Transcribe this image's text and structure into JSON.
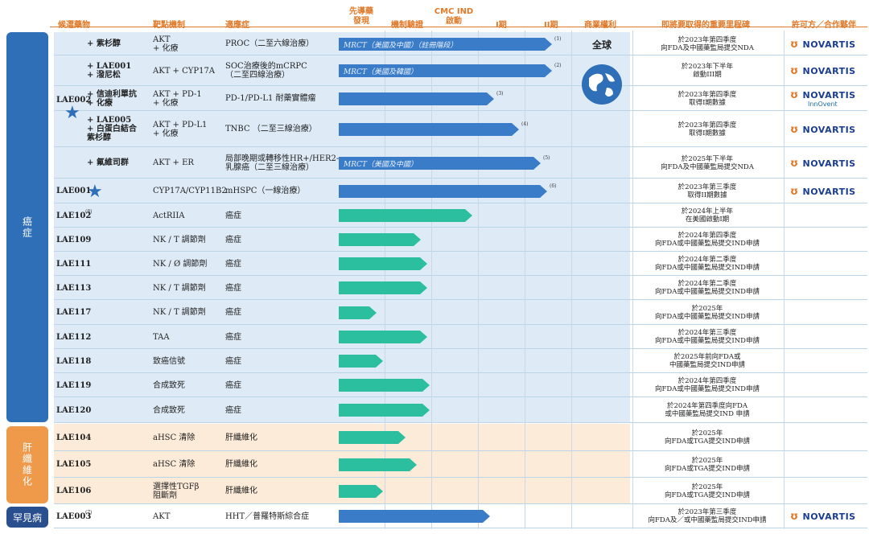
{
  "headers": {
    "candidate": "候選藥物",
    "mechanism": "靶點機制",
    "indication": "適應症",
    "discovery": "先導藥\n發現",
    "validation": "機制驗證",
    "cmc": "CMC IND\n啟動",
    "phase1": "I期",
    "phase2": "II期",
    "rights": "商業權利",
    "milestone": "即將要取得的重要里程碑",
    "partner": "許可方／合作夥伴"
  },
  "categories": [
    {
      "label": "癌症",
      "color": "#2f6fb8"
    },
    {
      "label": "肝纖維化",
      "color": "#ef9a4a"
    },
    {
      "label": "罕見病",
      "color": "#2a4f8f"
    }
  ],
  "group_lae002": {
    "name": "LAE002"
  },
  "rights_text": "全球",
  "rows": [
    {
      "drug": "+ 紫杉醇",
      "mech": "AKT\n+ 化療",
      "ind": "PROC（二至六線治療）",
      "stage": 0.96,
      "bartext": "MRCT（美國及中國）（註冊階段）",
      "note": "(1)",
      "ms": "於2023年第四季度\n向FDA及中國藥監局提交NDA",
      "partner": "NOVARTIS",
      "color": "blue"
    },
    {
      "drug": "+ LAE001\n+ 潑尼松",
      "mech": "AKT + CYP17A",
      "ind": "SOC治療後的mCRPC\n（二至四線治療）",
      "stage": 0.96,
      "bartext": "MRCT（美國及韓國）",
      "note": "(2)",
      "ms": "於2023年下半年\n啟動III期",
      "partner": "NOVARTIS",
      "color": "blue"
    },
    {
      "drug": "+ 信迪利單抗\n+ 化療",
      "mech": "AKT + PD-1\n+ 化療",
      "ind": "PD-1/PD-L1 耐藥實體瘤",
      "stage": 0.7,
      "bartext": "",
      "note": "(3)",
      "ms": "於2023年第四季度\n取得I期數據",
      "partner": "NOVARTIS",
      "partner2": "InnOvent",
      "color": "blue"
    },
    {
      "drug": "+ LAE005\n+ 白蛋白結合\n紫杉醇",
      "mech": "AKT + PD-L1\n+ 化療",
      "ind": "TNBC （二至三線治療）",
      "stage": 0.81,
      "bartext": "",
      "note": "(4)",
      "ms": "於2023年第四季度\n取得I期數據",
      "partner": "NOVARTIS",
      "color": "blue"
    },
    {
      "drug": "+ 氟維司群",
      "mech": "AKT + ER",
      "ind": "局部晚期或轉移性HR+/HER2-\n乳腺癌（二至三線治療）",
      "stage": 0.91,
      "bartext": "MRCT（美國及中國）",
      "note": "(5)",
      "ms": "於2025年下半年\n向FDA及中國藥監局提交NDA",
      "partner": "NOVARTIS",
      "color": "blue"
    },
    {
      "drug": "LAE001",
      "mech": "CYP17A/CYP11B2",
      "ind": "mHSPC（一線治療）",
      "stage": 0.94,
      "bartext": "",
      "note": "(6)",
      "ms": "於2023年第三季度\n取得II期數據",
      "partner": "NOVARTIS",
      "color": "blue"
    },
    {
      "drug": "LAE102",
      "dnote": "(8)",
      "mech": "ActRIIA",
      "ind": "癌症",
      "stage": 0.6,
      "ms": "於2024年上半年\n在美國啟動I期",
      "color": "green"
    },
    {
      "drug": "LAE109",
      "mech": "NK / T 調節劑",
      "ind": "癌症",
      "stage": 0.37,
      "ms": "於2024年第四季度\n向FDA或中國藥監局提交IND申請",
      "color": "green"
    },
    {
      "drug": "LAE111",
      "mech": "NK / Ø 調節劑",
      "ind": "癌症",
      "stage": 0.4,
      "ms": "於2024年第二季度\n向FDA或中國藥監局提交IND申請",
      "color": "green"
    },
    {
      "drug": "LAE113",
      "mech": "NK / T 調節劑",
      "ind": "癌症",
      "stage": 0.4,
      "ms": "於2024年第二季度\n向FDA或中國藥監局提交IND申請",
      "color": "green"
    },
    {
      "drug": "LAE117",
      "mech": "NK / T 調節劑",
      "ind": "癌症",
      "stage": 0.17,
      "ms": "於2025年\n向FDA或中國藥監局提交IND申請",
      "color": "green"
    },
    {
      "drug": "LAE112",
      "mech": "TAA",
      "ind": "癌症",
      "stage": 0.4,
      "ms": "於2024年第三季度\n向FDA或中國藥監局提交IND申請",
      "color": "green"
    },
    {
      "drug": "LAE118",
      "mech": "致癌信號",
      "ind": "癌症",
      "stage": 0.2,
      "ms": "於2025年前向FDA或\n中國藥監局提交IND申請",
      "color": "green"
    },
    {
      "drug": "LAE119",
      "mech": "合成致死",
      "ind": "癌症",
      "stage": 0.41,
      "ms": "於2024年第四季度\n向FDA或中國藥監局提交IND申請",
      "color": "green"
    },
    {
      "drug": "LAE120",
      "mech": "合成致死",
      "ind": "癌症",
      "stage": 0.41,
      "ms": "於2024年第四季度向FDA\n或中國藥監局提交IND 申請",
      "color": "green"
    },
    {
      "drug": "LAE104",
      "mech": "aHSC 清除",
      "ind": "肝纖維化",
      "stage": 0.3,
      "ms": "於2025年\n向FDA或TGA提交IND申請",
      "color": "green"
    },
    {
      "drug": "LAE105",
      "mech": "aHSC 清除",
      "ind": "肝纖維化",
      "stage": 0.35,
      "ms": "於2025年\n向FDA或TGA提交IND申請",
      "color": "green"
    },
    {
      "drug": "LAE106",
      "mech": "選擇性TGFβ\n阻斷劑",
      "ind": "肝纖維化",
      "stage": 0.2,
      "ms": "於2025年\n向FDA或TGA提交IND申請",
      "color": "green"
    },
    {
      "drug": "LAE003",
      "dnote": "(7)",
      "mech": "AKT",
      "ind": "HHT／普羅特斯綜合症",
      "stage": 0.68,
      "ms": "於2023年第三季度\n向FDA及／或中國藥監局提交IND申請",
      "partner": "NOVARTIS",
      "color": "blue"
    }
  ]
}
